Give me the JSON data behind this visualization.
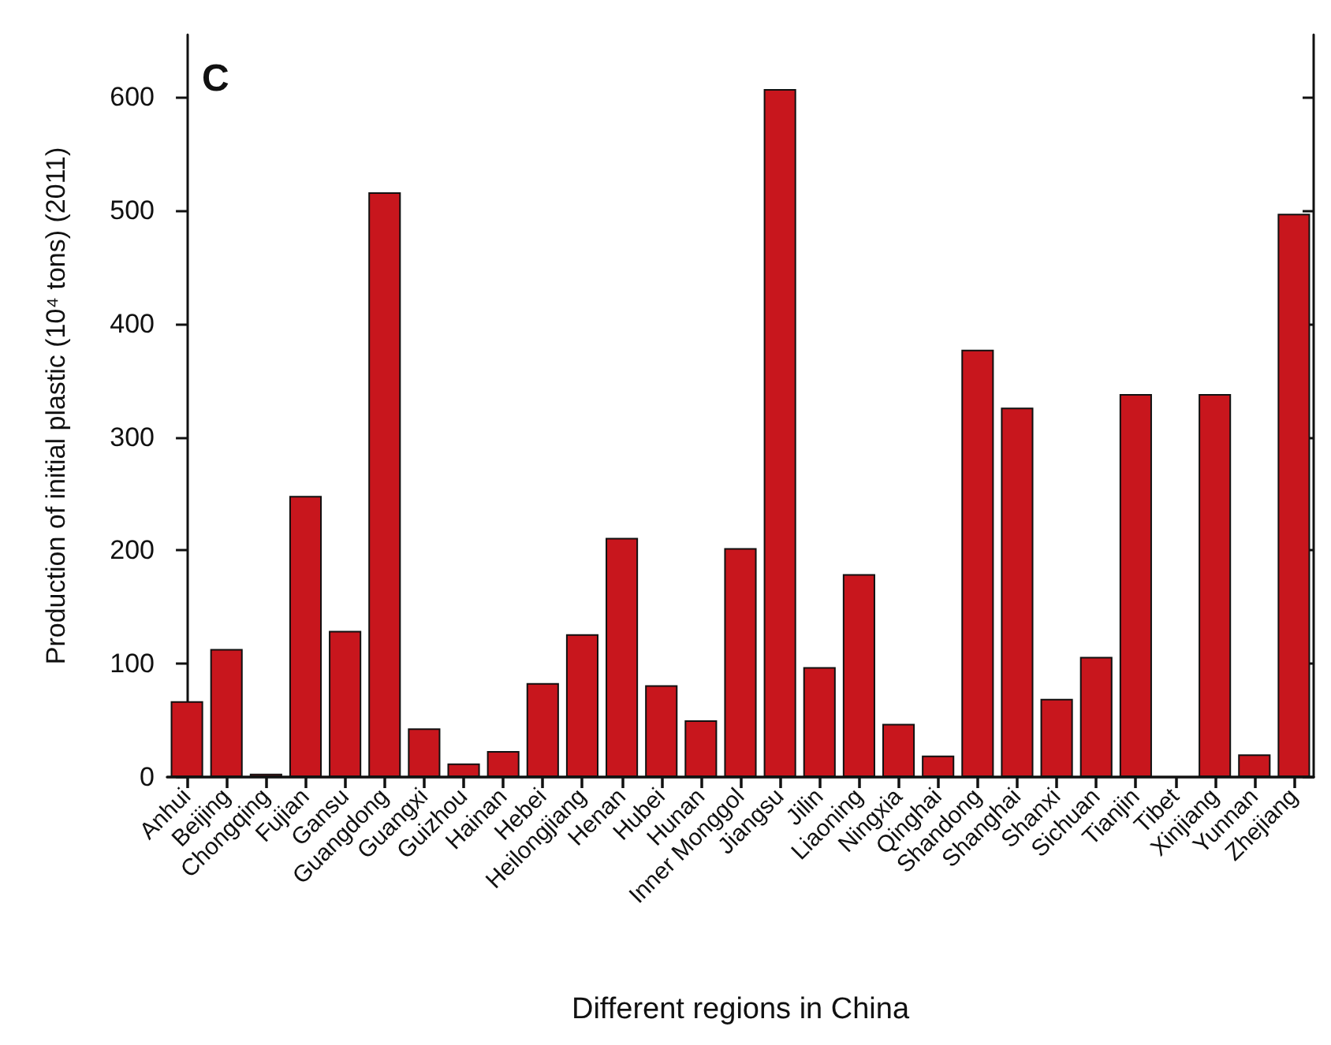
{
  "chart_data": {
    "type": "bar",
    "xlabel": "Different regions in China",
    "ylabel": "Production of initial plastic (10⁴ tons) (2011)",
    "annotations": [
      "C"
    ],
    "categories": [
      "Anhui",
      "Beijing",
      "Chongqing",
      "Fujian",
      "Gansu",
      "Guangdong",
      "Guangxi",
      "Guizhou",
      "Hainan",
      "Hebei",
      "Heilongjiang",
      "Henan",
      "Hubei",
      "Hunan",
      "Inner Monggol",
      "Jiangsu",
      "Jilin",
      "Liaoning",
      "Ningxia",
      "Qinghai",
      "Shandong",
      "Shanghai",
      "Shanxi",
      "Sichuan",
      "Tianjin",
      "Tibet",
      "Xinjiang",
      "Yunnan",
      "Zhejiang"
    ],
    "values": [
      67,
      113,
      3,
      248,
      129,
      516,
      43,
      12,
      23,
      83,
      126,
      211,
      81,
      50,
      202,
      607,
      97,
      179,
      47,
      19,
      377,
      326,
      69,
      106,
      338,
      0,
      338,
      20,
      497
    ],
    "color": "#c8161d",
    "ylim": [
      0,
      655
    ],
    "yticks": [
      0,
      100,
      200,
      300,
      400,
      500,
      600
    ],
    "grid": false
  }
}
